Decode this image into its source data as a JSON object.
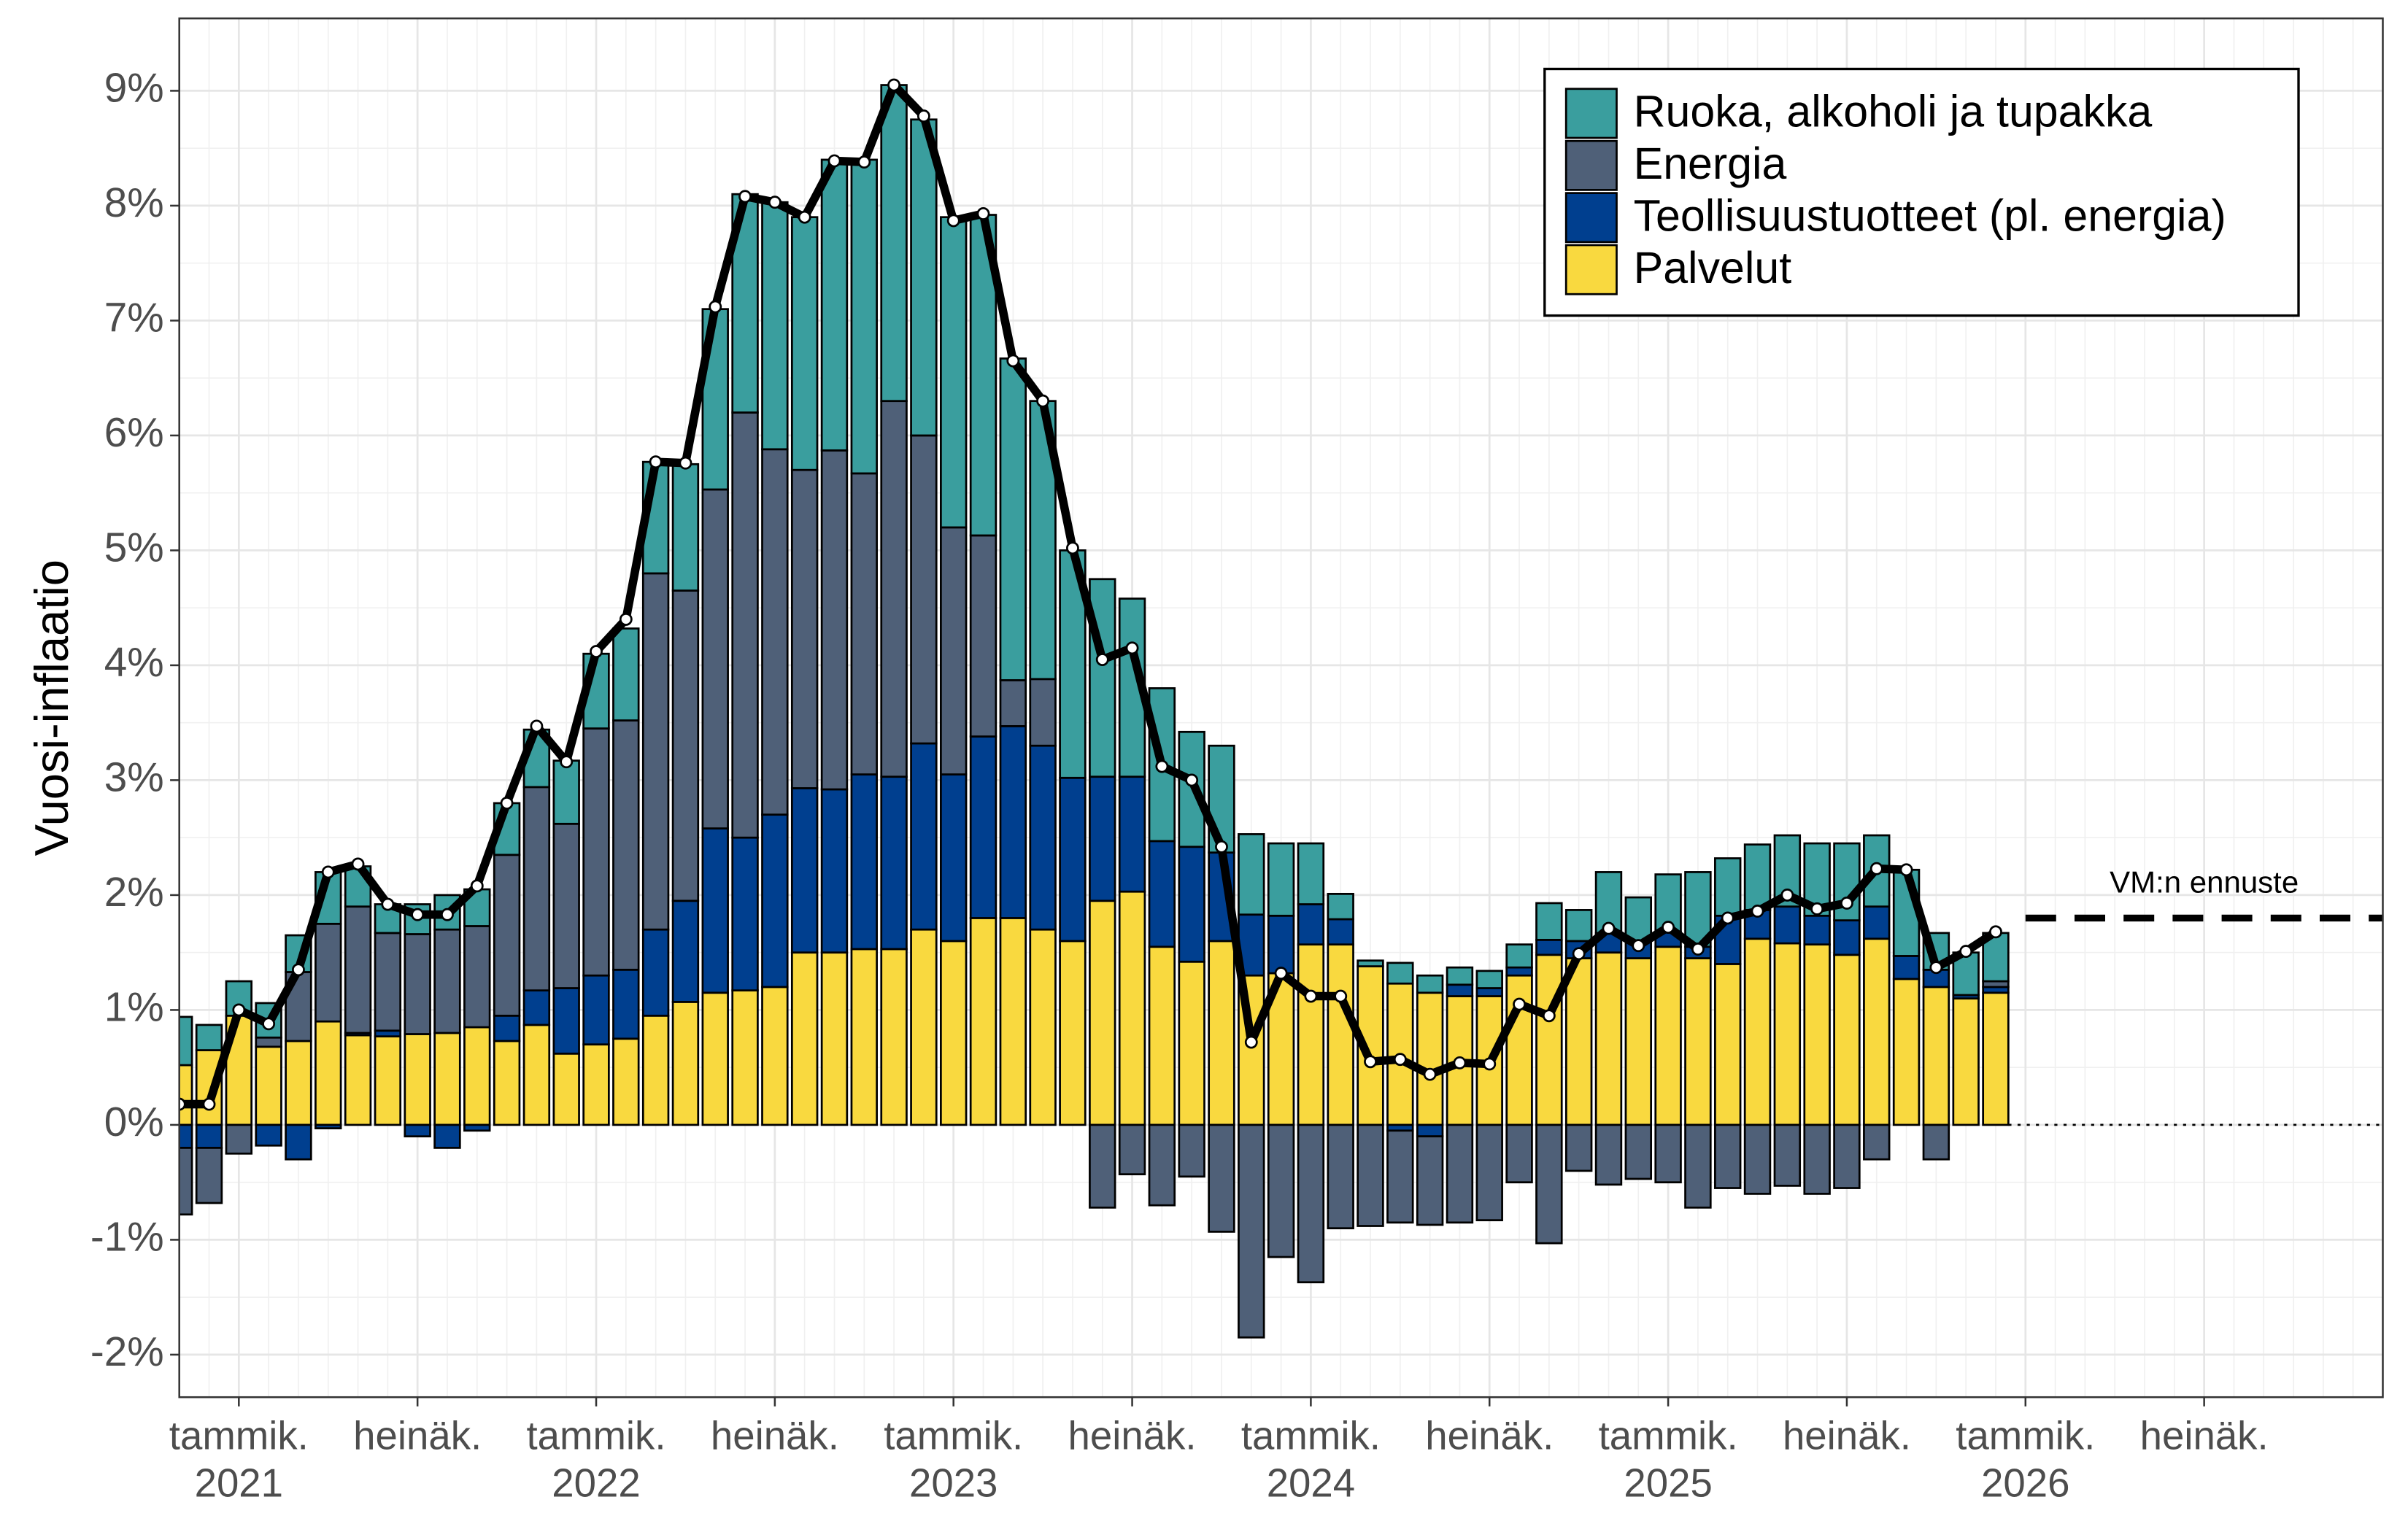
{
  "chart_data": {
    "type": "stacked-bar-line",
    "y_label": "Vuosi-inflaatio",
    "x": [
      "2020-11",
      "2020-12",
      "2021-01",
      "2021-02",
      "2021-03",
      "2021-04",
      "2021-05",
      "2021-06",
      "2021-07",
      "2021-08",
      "2021-09",
      "2021-10",
      "2021-11",
      "2021-12",
      "2022-01",
      "2022-02",
      "2022-03",
      "2022-04",
      "2022-05",
      "2022-06",
      "2022-07",
      "2022-08",
      "2022-09",
      "2022-10",
      "2022-11",
      "2022-12",
      "2023-01",
      "2023-02",
      "2023-03",
      "2023-04",
      "2023-05",
      "2023-06",
      "2023-07",
      "2023-08",
      "2023-09",
      "2023-10",
      "2023-11",
      "2023-12",
      "2024-01",
      "2024-02",
      "2024-03",
      "2024-04",
      "2024-05",
      "2024-06",
      "2024-07",
      "2024-08",
      "2024-09",
      "2024-10",
      "2024-11",
      "2024-12",
      "2025-01",
      "2025-02",
      "2025-03",
      "2025-04",
      "2025-05",
      "2025-06",
      "2025-07",
      "2025-08",
      "2025-09",
      "2025-10",
      "2025-11",
      "2025-12"
    ],
    "series": [
      {
        "name": "Ruoka, alkoholi ja tupakka",
        "color": "#3a9e9e",
        "values": [
          0.42,
          0.22,
          0.3,
          0.3,
          0.32,
          0.45,
          0.35,
          0.25,
          0.26,
          0.3,
          0.32,
          0.45,
          0.5,
          0.55,
          0.65,
          0.8,
          0.97,
          1.1,
          1.57,
          1.9,
          2.15,
          2.2,
          2.53,
          2.73,
          2.75,
          2.75,
          2.7,
          2.79,
          2.8,
          2.42,
          1.98,
          1.72,
          1.55,
          1.33,
          1.0,
          0.93,
          0.7,
          0.63,
          0.53,
          0.22,
          0.05,
          0.18,
          0.15,
          0.15,
          0.15,
          0.2,
          0.32,
          0.27,
          0.53,
          0.38,
          0.5,
          0.65,
          0.5,
          0.57,
          0.62,
          0.63,
          0.67,
          0.62,
          0.75,
          0.32,
          0.37,
          0.42
        ]
      },
      {
        "name": "Energia",
        "color": "#4f6078",
        "values": [
          -0.58,
          -0.48,
          -0.25,
          0.08,
          0.6,
          0.85,
          1.1,
          0.85,
          0.87,
          0.9,
          0.88,
          1.4,
          1.77,
          1.43,
          2.15,
          2.17,
          3.1,
          2.7,
          2.95,
          3.7,
          3.18,
          2.77,
          2.95,
          2.62,
          3.27,
          2.68,
          2.15,
          1.75,
          0.4,
          0.58,
          0,
          -0.72,
          -0.43,
          -0.7,
          -0.45,
          -0.93,
          -1.85,
          -1.15,
          -1.37,
          -0.9,
          -0.88,
          -0.8,
          -0.77,
          -0.85,
          -0.83,
          -0.5,
          -1.03,
          -0.4,
          -0.52,
          -0.47,
          -0.5,
          -0.72,
          -0.55,
          -0.6,
          -0.53,
          -0.6,
          -0.55,
          -0.3,
          0,
          -0.3,
          0,
          0.05
        ]
      },
      {
        "name": "Teollisuustuotteet (pl. energia)",
        "color": "#003f8f",
        "values": [
          -0.2,
          -0.2,
          0,
          -0.18,
          -0.3,
          -0.03,
          0.02,
          0.05,
          -0.1,
          -0.2,
          -0.05,
          0.22,
          0.3,
          0.57,
          0.6,
          0.6,
          0.75,
          0.88,
          1.43,
          1.33,
          1.5,
          1.43,
          1.42,
          1.52,
          1.5,
          1.62,
          1.45,
          1.58,
          1.67,
          1.6,
          1.42,
          1.08,
          1.0,
          0.92,
          1.0,
          0.77,
          0.53,
          0.5,
          0.35,
          0.22,
          0,
          -0.05,
          -0.1,
          0.1,
          0.07,
          0.07,
          0.13,
          0.15,
          0.17,
          0.15,
          0.13,
          0.1,
          0.42,
          0.25,
          0.32,
          0.25,
          0.3,
          0.28,
          0.2,
          0.15,
          0.03,
          0.05
        ]
      },
      {
        "name": "Palvelut",
        "color": "#f9d93f",
        "values": [
          0.52,
          0.65,
          0.95,
          0.68,
          0.73,
          0.9,
          0.78,
          0.77,
          0.79,
          0.8,
          0.85,
          0.73,
          0.87,
          0.62,
          0.7,
          0.75,
          0.95,
          1.07,
          1.15,
          1.17,
          1.2,
          1.5,
          1.5,
          1.53,
          1.53,
          1.7,
          1.6,
          1.8,
          1.8,
          1.7,
          1.6,
          1.95,
          2.03,
          1.55,
          1.42,
          1.6,
          1.3,
          1.32,
          1.57,
          1.57,
          1.38,
          1.23,
          1.15,
          1.12,
          1.12,
          1.3,
          1.48,
          1.45,
          1.5,
          1.45,
          1.55,
          1.45,
          1.4,
          1.62,
          1.58,
          1.57,
          1.48,
          1.62,
          1.27,
          1.2,
          1.1,
          1.15
        ]
      }
    ],
    "total": {
      "color": "#000000",
      "values": [
        0.18,
        0.18,
        1.0,
        0.88,
        1.35,
        2.2,
        2.27,
        1.92,
        1.83,
        1.83,
        2.08,
        2.8,
        3.47,
        3.16,
        4.12,
        4.4,
        5.77,
        5.76,
        7.12,
        8.08,
        8.03,
        7.9,
        8.39,
        8.38,
        9.05,
        8.78,
        7.87,
        7.93,
        6.65,
        6.3,
        5.02,
        4.05,
        4.15,
        3.12,
        3.0,
        2.42,
        0.72,
        1.32,
        1.12,
        1.12,
        0.55,
        0.57,
        0.44,
        0.54,
        0.53,
        1.05,
        0.95,
        1.49,
        1.71,
        1.56,
        1.72,
        1.53,
        1.8,
        1.86,
        2.0,
        1.88,
        1.93,
        2.23,
        2.22,
        1.37,
        1.51,
        1.68
      ]
    },
    "forecast": {
      "label": "VM:n ennuste",
      "value": 1.8,
      "x": "2026-01"
    },
    "xlim": [
      "2020-11",
      "2027-01"
    ],
    "xticks": [
      {
        "value": "2021-01",
        "label": "tammik.",
        "year": "2021"
      },
      {
        "value": "2021-07",
        "label": "heinäk."
      },
      {
        "value": "2022-01",
        "label": "tammik.",
        "year": "2022"
      },
      {
        "value": "2022-07",
        "label": "heinäk."
      },
      {
        "value": "2023-01",
        "label": "tammik.",
        "year": "2023"
      },
      {
        "value": "2023-07",
        "label": "heinäk."
      },
      {
        "value": "2024-01",
        "label": "tammik.",
        "year": "2024"
      },
      {
        "value": "2024-07",
        "label": "heinäk."
      },
      {
        "value": "2025-01",
        "label": "tammik.",
        "year": "2025"
      },
      {
        "value": "2025-07",
        "label": "heinäk."
      },
      {
        "value": "2026-01",
        "label": "tammik.",
        "year": "2026"
      },
      {
        "value": "2026-07",
        "label": "heinäk."
      }
    ],
    "ylim": [
      -2.37,
      9.63
    ],
    "yticks": [
      {
        "value": -2,
        "label": "-2%"
      },
      {
        "value": -1,
        "label": "-1%"
      },
      {
        "value": 0,
        "label": "0%"
      },
      {
        "value": 1,
        "label": "1%"
      },
      {
        "value": 2,
        "label": "2%"
      },
      {
        "value": 3,
        "label": "3%"
      },
      {
        "value": 4,
        "label": "4%"
      },
      {
        "value": 5,
        "label": "5%"
      },
      {
        "value": 6,
        "label": "6%"
      },
      {
        "value": 7,
        "label": "7%"
      },
      {
        "value": 8,
        "label": "8%"
      },
      {
        "value": 9,
        "label": "9%"
      }
    ],
    "grid": true,
    "legend": "top-right"
  }
}
